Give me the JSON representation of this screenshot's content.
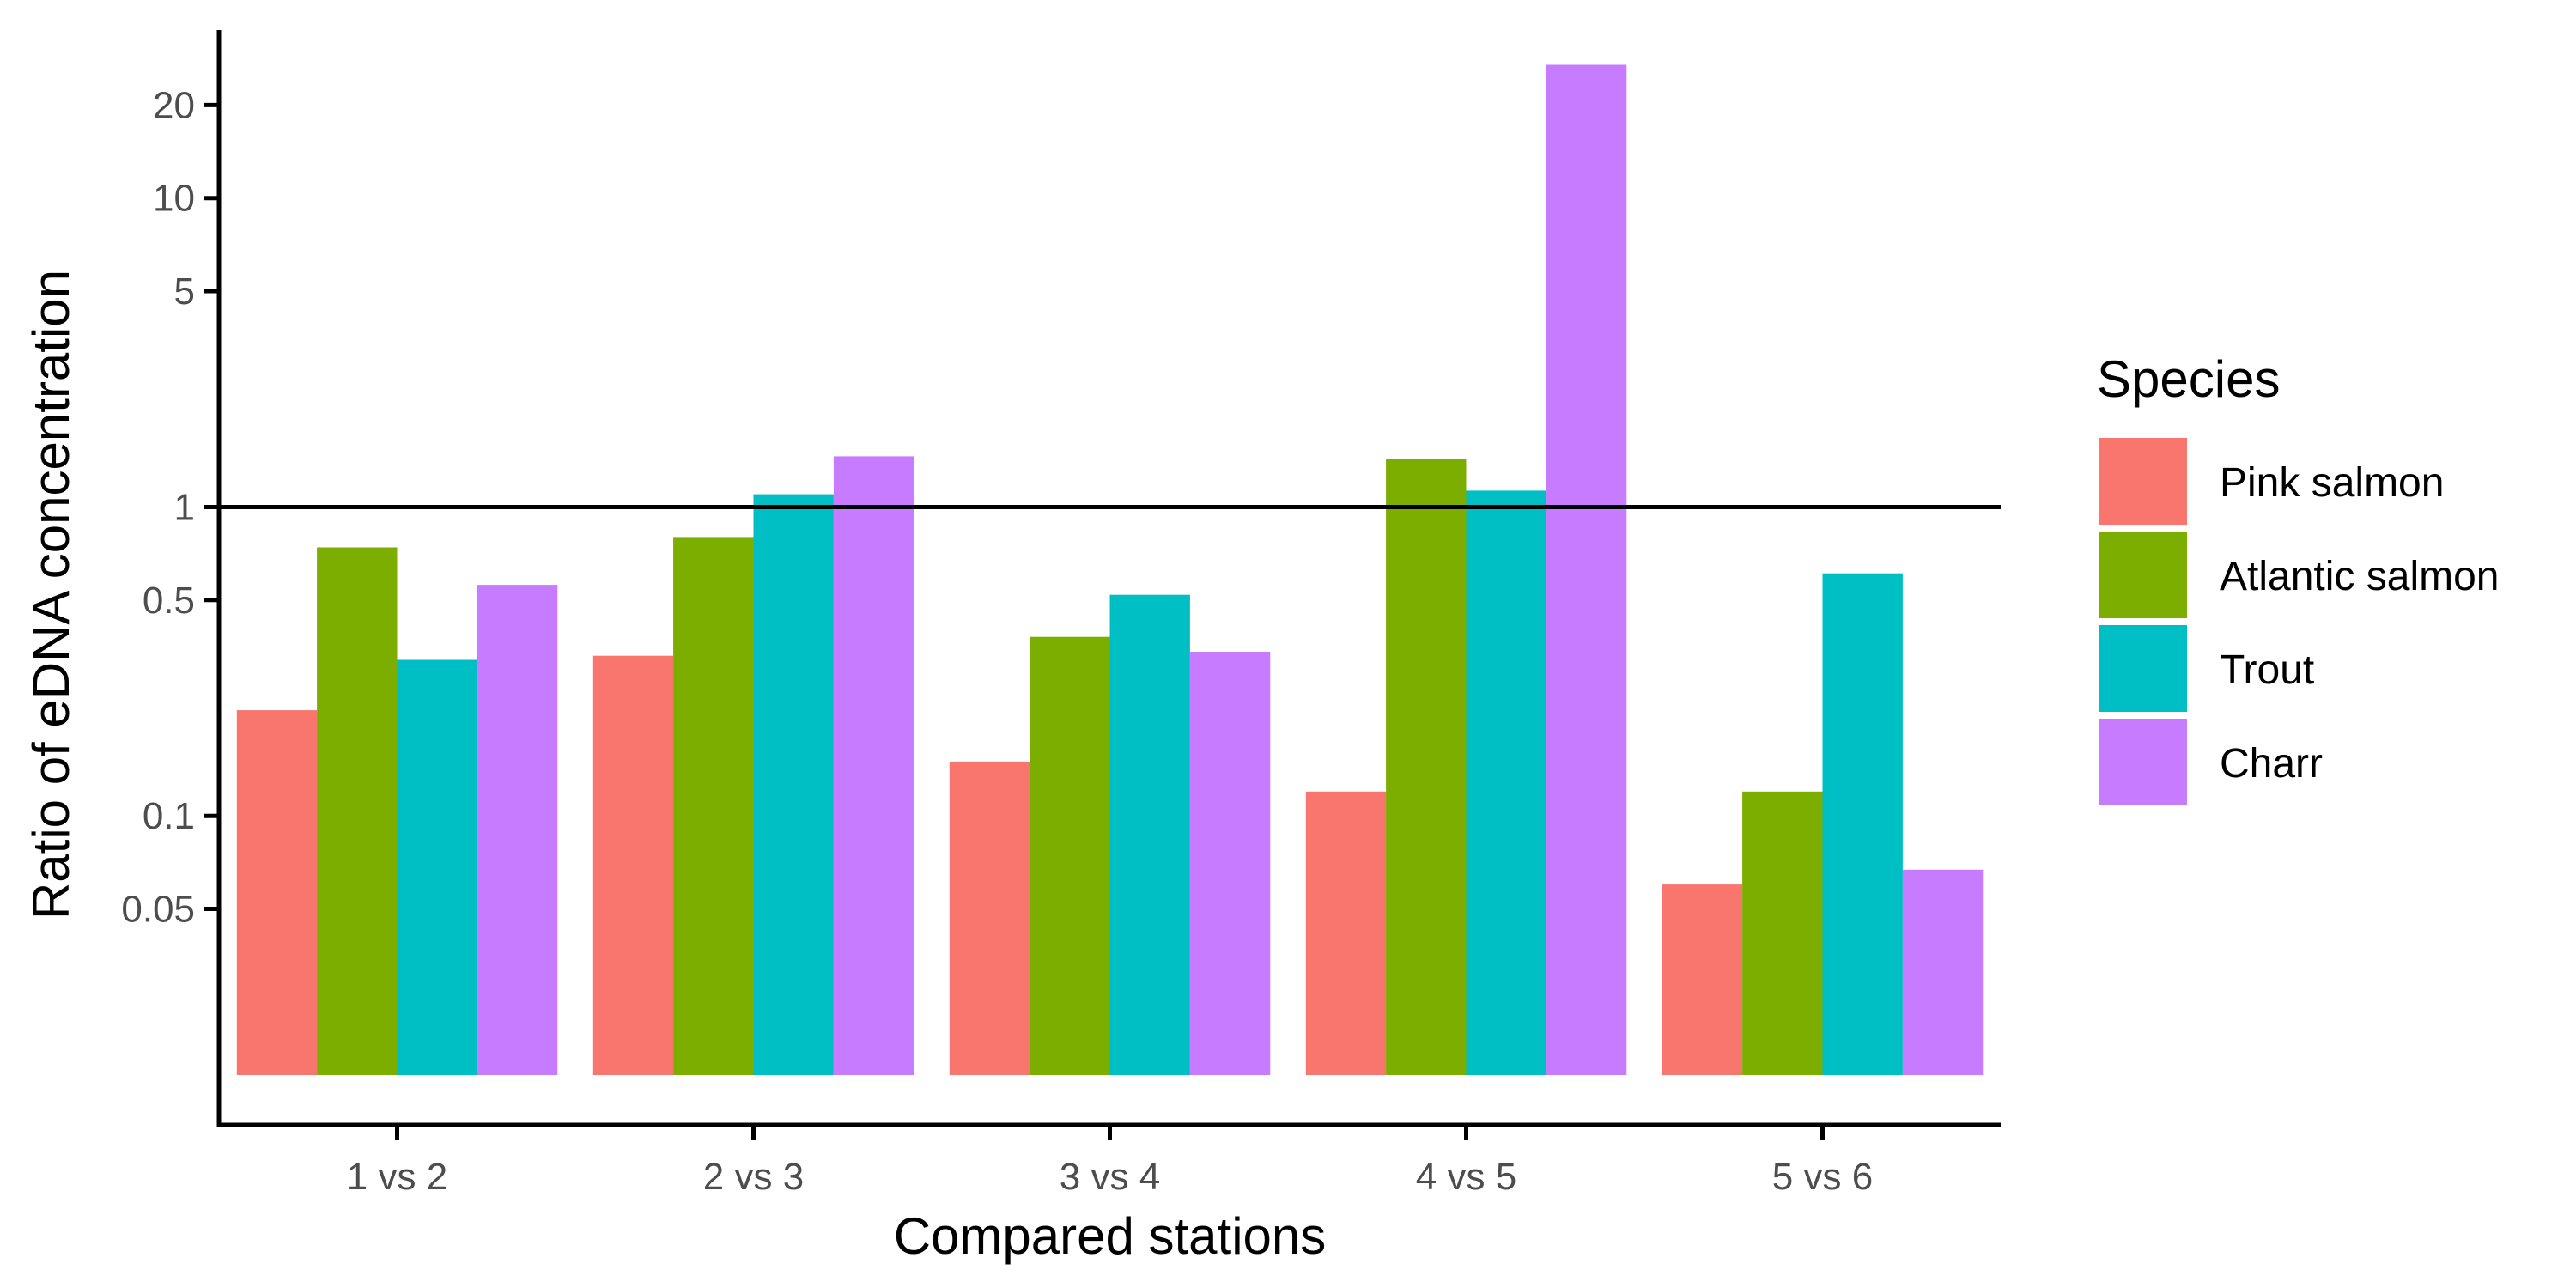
{
  "chart_data": {
    "type": "bar",
    "title": "",
    "xlabel": "Compared stations",
    "ylabel": "Ratio of eDNA concentration",
    "yscale": "log",
    "ylim": [
      0.01,
      35
    ],
    "yticks": [
      0.05,
      0.1,
      0.5,
      1,
      5,
      10,
      20
    ],
    "ytick_labels": [
      "0.05",
      "0.1",
      "0.5",
      "1",
      "5",
      "10",
      "20"
    ],
    "reference_line": 1,
    "categories": [
      "1 vs 2",
      "2 vs 3",
      "3 vs 4",
      "4 vs 5",
      "5 vs 6"
    ],
    "series": [
      {
        "name": "Pink salmon",
        "color": "#F8766D",
        "values": [
          0.22,
          0.33,
          0.15,
          0.12,
          0.06
        ]
      },
      {
        "name": "Atlantic salmon",
        "color": "#7CAE00",
        "values": [
          0.74,
          0.8,
          0.38,
          1.43,
          0.12
        ]
      },
      {
        "name": "Trout",
        "color": "#00BFC4",
        "values": [
          0.32,
          1.1,
          0.52,
          1.13,
          0.61
        ]
      },
      {
        "name": "Charr",
        "color": "#C77CFF",
        "values": [
          0.56,
          1.46,
          0.34,
          27,
          0.067
        ]
      }
    ],
    "legend": {
      "title": "Species",
      "position": "right"
    },
    "grid": false
  }
}
